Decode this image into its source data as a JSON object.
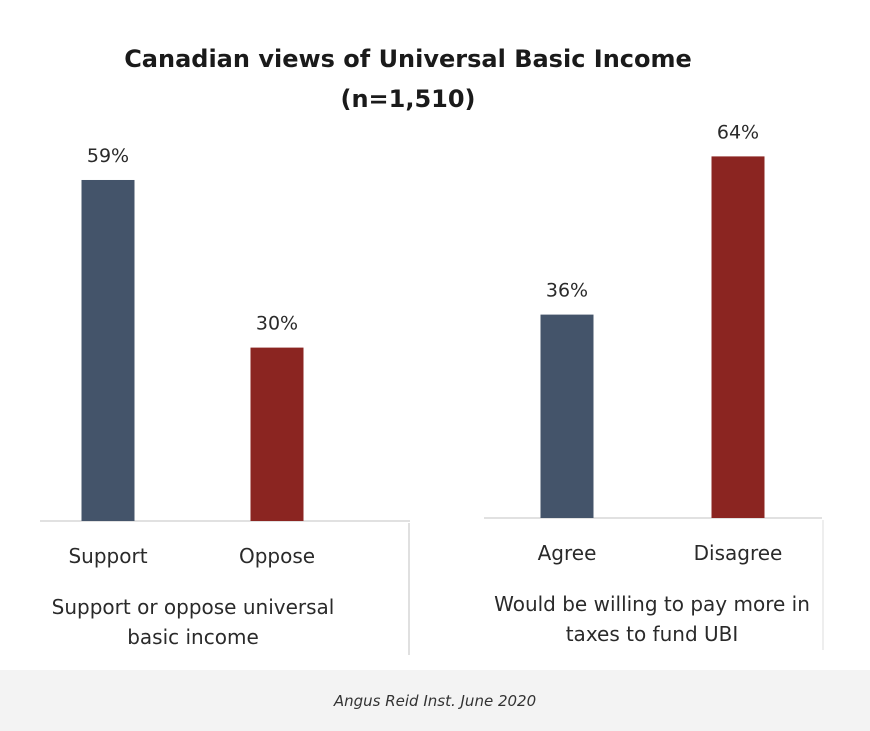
{
  "chart_data": {
    "type": "bar",
    "title": "Canadian views of Universal Basic Income",
    "subtitle": "(n=1,510)",
    "ylim": [
      0,
      65
    ],
    "grid": false,
    "panels": [
      {
        "group_label_lines": [
          "Support or oppose universal",
          "basic income"
        ],
        "categories": [
          "Support",
          "Oppose"
        ],
        "values": [
          59,
          30
        ],
        "labels": [
          "59%",
          "30%"
        ],
        "colors": [
          "#44546a",
          "#8b2521"
        ]
      },
      {
        "group_label_lines": [
          "Would be willing to pay more in",
          "taxes to fund UBI"
        ],
        "categories": [
          "Agree",
          "Disagree"
        ],
        "values": [
          36,
          64
        ],
        "labels": [
          "36%",
          "64%"
        ],
        "colors": [
          "#44546a",
          "#8b2521"
        ]
      }
    ]
  },
  "caption": "Angus Reid Inst. June 2020"
}
